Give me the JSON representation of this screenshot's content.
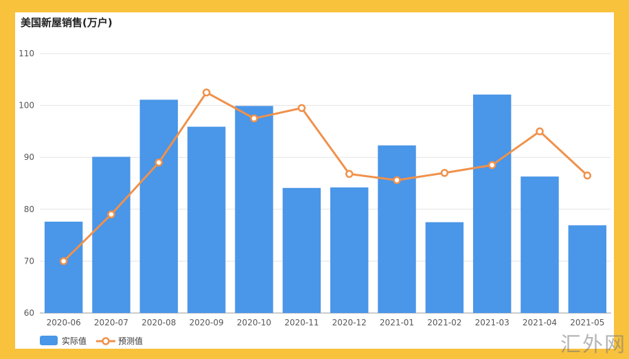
{
  "chart_data": {
    "type": "bar",
    "title": "美国新屋销售(万户)",
    "categories": [
      "2020-06",
      "2020-07",
      "2020-08",
      "2020-09",
      "2020-10",
      "2020-11",
      "2020-12",
      "2021-01",
      "2021-02",
      "2021-03",
      "2021-04",
      "2021-05"
    ],
    "ylim": [
      60,
      110
    ],
    "yticks": [
      60,
      70,
      80,
      90,
      100,
      110
    ],
    "grid": true,
    "legend_position": "bottom-left",
    "series": [
      {
        "name": "实际值",
        "type": "bar",
        "color": "#4a96e8",
        "values": [
          77.6,
          90.1,
          101.1,
          95.9,
          99.9,
          84.1,
          84.2,
          92.3,
          77.5,
          102.1,
          86.3,
          76.9
        ]
      },
      {
        "name": "预测值",
        "type": "line",
        "color": "#f0914a",
        "values": [
          70.0,
          79.0,
          89.0,
          102.5,
          97.5,
          99.5,
          86.8,
          85.6,
          87.0,
          88.5,
          95.0,
          86.5
        ]
      }
    ]
  },
  "watermark": "汇外网"
}
